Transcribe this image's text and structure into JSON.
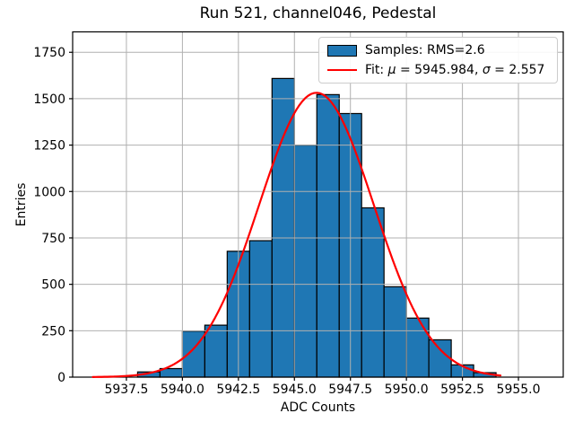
{
  "title": "Run 521, channel046, Pedestal",
  "chart_data": {
    "type": "bar",
    "subtype": "histogram-with-gaussian-fit",
    "title": "Run 521, channel046, Pedestal",
    "xlabel": "ADC Counts",
    "ylabel": "Entries",
    "xlim": [
      5935.1,
      5957.0
    ],
    "ylim": [
      0,
      1860
    ],
    "x_ticks": [
      5937.5,
      5940.0,
      5942.5,
      5945.0,
      5947.5,
      5950.0,
      5952.5,
      5955.0
    ],
    "x_tick_labels": [
      "5937.5",
      "5940.0",
      "5942.5",
      "5945.0",
      "5947.5",
      "5950.0",
      "5952.5",
      "5955.0"
    ],
    "y_ticks": [
      0,
      250,
      500,
      750,
      1000,
      1250,
      1500,
      1750
    ],
    "y_tick_labels": [
      "0",
      "250",
      "500",
      "750",
      "1000",
      "1250",
      "1500",
      "1750"
    ],
    "grid": true,
    "grid_color": "#b0b0b0",
    "bar_color": "#1f77b4",
    "bar_edge_color": "#000000",
    "bin_edges": [
      5938,
      5939,
      5940,
      5941,
      5942,
      5943,
      5944,
      5945,
      5946,
      5947,
      5948,
      5949,
      5950,
      5951,
      5952,
      5953,
      5954
    ],
    "bin_counts": [
      28,
      46,
      248,
      280,
      678,
      735,
      1609,
      1250,
      1522,
      1420,
      912,
      487,
      318,
      201,
      66,
      24
    ],
    "samples_rms": 2.6,
    "fit": {
      "mu": 5945.984,
      "sigma": 2.557,
      "amplitude": 1532,
      "x_start": 5936.0,
      "x_end": 5954.2,
      "color": "#ff0000"
    },
    "legend": {
      "position": "upper right",
      "items": [
        {
          "label": "Samples: RMS=2.6",
          "type": "patch"
        },
        {
          "label": "Fit: μ = 5945.984, σ = 2.557",
          "type": "line"
        }
      ]
    }
  }
}
